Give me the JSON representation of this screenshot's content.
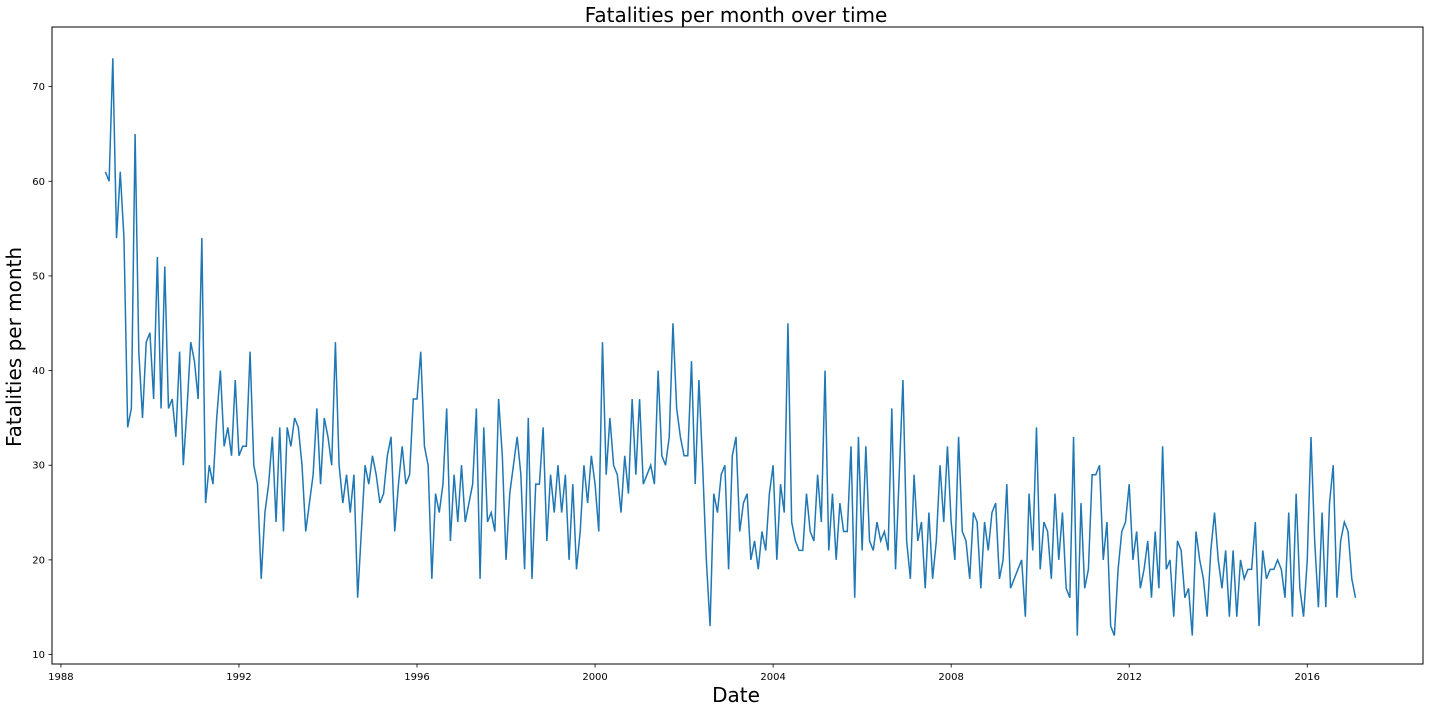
{
  "chart_data": {
    "type": "line",
    "title": "Fatalities per month over time",
    "xlabel": "Date",
    "ylabel": "Fatalities per month",
    "xlim": [
      1987.8,
      2018.6
    ],
    "ylim": [
      9,
      76.3
    ],
    "x_ticks": [
      1988,
      1992,
      1996,
      2000,
      2004,
      2008,
      2012,
      2016
    ],
    "y_ticks": [
      10,
      20,
      30,
      40,
      50,
      60,
      70
    ],
    "grid": false,
    "legend": "none",
    "series": [
      {
        "color": "#1f77b4",
        "x_start": 1989.0,
        "x_step": 0.0833333,
        "values": [
          61,
          60,
          73,
          54,
          61,
          54,
          34,
          36,
          65,
          42,
          35,
          43,
          44,
          37,
          52,
          36,
          51,
          36,
          37,
          33,
          42,
          30,
          36,
          43,
          41,
          37,
          54,
          26,
          30,
          28,
          35,
          40,
          32,
          34,
          31,
          39,
          31,
          32,
          32,
          42,
          30,
          28,
          18,
          25,
          28,
          33,
          24,
          34,
          23,
          34,
          32,
          35,
          34,
          30,
          23,
          26,
          29,
          36,
          28,
          35,
          33,
          30,
          43,
          30,
          26,
          29,
          25,
          29,
          16,
          23,
          30,
          28,
          31,
          29,
          26,
          27,
          31,
          33,
          23,
          28,
          32,
          28,
          29,
          37,
          37,
          42,
          32,
          30,
          18,
          27,
          25,
          28,
          36,
          22,
          29,
          24,
          30,
          24,
          26,
          28,
          36,
          18,
          34,
          24,
          25,
          23,
          37,
          31,
          20,
          27,
          30,
          33,
          29,
          19,
          35,
          18,
          28,
          28,
          34,
          22,
          29,
          25,
          30,
          25,
          29,
          20,
          28,
          19,
          23,
          30,
          26,
          31,
          28,
          23,
          43,
          29,
          35,
          30,
          29,
          25,
          31,
          27,
          37,
          29,
          37,
          28,
          29,
          30,
          28,
          40,
          31,
          30,
          33,
          45,
          36,
          33,
          31,
          31,
          41,
          28,
          39,
          30,
          20,
          13,
          27,
          25,
          29,
          30,
          19,
          31,
          33,
          23,
          26,
          27,
          20,
          22,
          19,
          23,
          21,
          27,
          30,
          20,
          28,
          25,
          45,
          24,
          22,
          21,
          21,
          27,
          23,
          22,
          29,
          24,
          40,
          21,
          27,
          20,
          26,
          23,
          23,
          32,
          16,
          33,
          21,
          32,
          22,
          21,
          24,
          22,
          23,
          21,
          36,
          19,
          29,
          39,
          22,
          18,
          29,
          22,
          24,
          17,
          25,
          18,
          22,
          30,
          24,
          32,
          24,
          20,
          33,
          23,
          22,
          18,
          25,
          24,
          17,
          24,
          21,
          25,
          26,
          18,
          20,
          28,
          17,
          18,
          19,
          20,
          14,
          27,
          21,
          34,
          19,
          24,
          23,
          18,
          27,
          20,
          25,
          17,
          16,
          33,
          12,
          26,
          17,
          19,
          29,
          29,
          30,
          20,
          24,
          13,
          12,
          19,
          23,
          24,
          28,
          20,
          23,
          17,
          19,
          22,
          16,
          23,
          17,
          32,
          19,
          20,
          14,
          22,
          21,
          16,
          17,
          12,
          23,
          20,
          18,
          14,
          21,
          25,
          20,
          17,
          21,
          14,
          21,
          14,
          20,
          18,
          19,
          19,
          24,
          13,
          21,
          18,
          19,
          19,
          20,
          19,
          16,
          25,
          14,
          27,
          17,
          14,
          20,
          33,
          22,
          15,
          25,
          15,
          26,
          30,
          16,
          22,
          24,
          23,
          18,
          16
        ]
      }
    ]
  }
}
